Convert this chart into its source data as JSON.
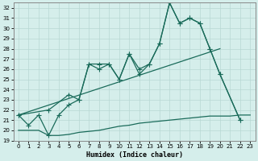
{
  "xlabel": "Humidex (Indice chaleur)",
  "background_color": "#d5eeeb",
  "grid_color": "#b8d8d4",
  "line_color": "#1a6b5a",
  "xlim": [
    -0.5,
    23.5
  ],
  "ylim": [
    19,
    32.5
  ],
  "yticks": [
    19,
    20,
    21,
    22,
    23,
    24,
    25,
    26,
    27,
    28,
    29,
    30,
    31,
    32
  ],
  "xticks": [
    0,
    1,
    2,
    3,
    4,
    5,
    6,
    7,
    8,
    9,
    10,
    11,
    12,
    13,
    14,
    15,
    16,
    17,
    18,
    19,
    20,
    21,
    22,
    23
  ],
  "line1_x": [
    0,
    1,
    2,
    3,
    4,
    5,
    6,
    7,
    8,
    9,
    10,
    11,
    12,
    13,
    14,
    15,
    16,
    17,
    18,
    19,
    20,
    22
  ],
  "line1_y": [
    21.5,
    20.5,
    21.5,
    19.5,
    21.5,
    22.5,
    23.0,
    26.5,
    26.5,
    26.5,
    25.0,
    27.5,
    25.5,
    26.5,
    28.5,
    32.5,
    30.5,
    31.0,
    30.5,
    28.0,
    25.5,
    21.0
  ],
  "line2_x": [
    0,
    3,
    5,
    6,
    7,
    8,
    9,
    10,
    11,
    12,
    13,
    14,
    15,
    16,
    17,
    18,
    19,
    20,
    22
  ],
  "line2_y": [
    21.5,
    22.0,
    23.5,
    23.0,
    26.5,
    26.0,
    26.5,
    25.0,
    27.5,
    26.0,
    26.5,
    28.5,
    32.5,
    30.5,
    31.0,
    30.5,
    28.0,
    25.5,
    21.0
  ],
  "line3_x": [
    0,
    20
  ],
  "line3_y": [
    21.5,
    28.0
  ],
  "line4_x": [
    0,
    1,
    2,
    3,
    4,
    5,
    6,
    7,
    8,
    9,
    10,
    11,
    12,
    13,
    14,
    15,
    16,
    17,
    18,
    19,
    20,
    21,
    22,
    23
  ],
  "line4_y": [
    20.0,
    20.0,
    20.0,
    19.5,
    19.5,
    19.6,
    19.8,
    19.9,
    20.0,
    20.2,
    20.4,
    20.5,
    20.7,
    20.8,
    20.9,
    21.0,
    21.1,
    21.2,
    21.3,
    21.4,
    21.4,
    21.4,
    21.5,
    21.5
  ]
}
